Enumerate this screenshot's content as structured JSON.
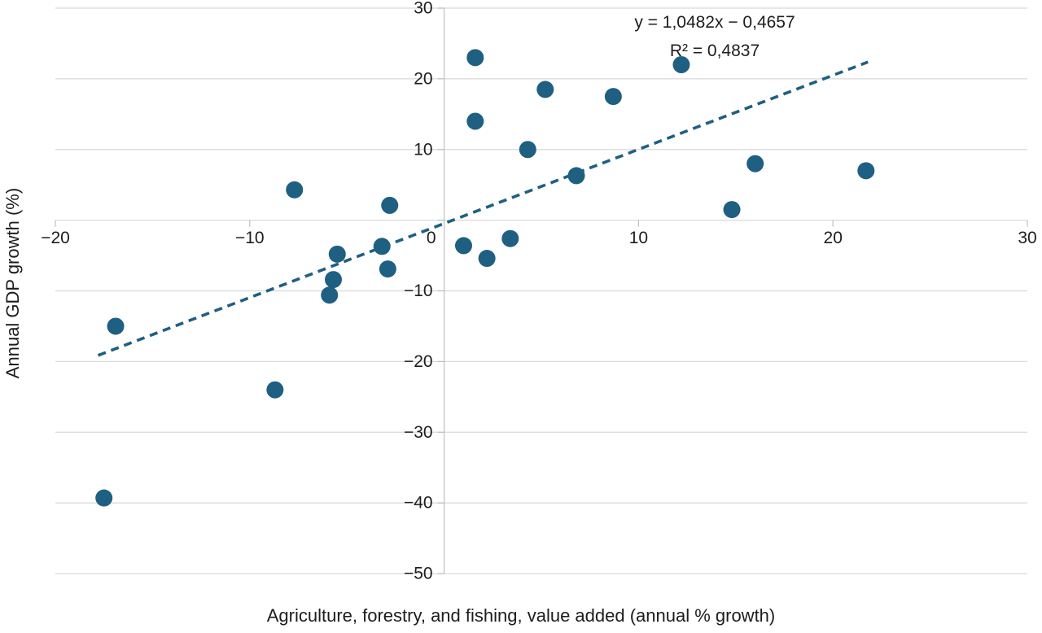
{
  "chart_data": {
    "type": "scatter",
    "title": "",
    "xlabel": "Agriculture, forestry, and fishing, value added (annual % growth)",
    "ylabel": "Annual GDP growth (%)",
    "xlim": [
      -20,
      30
    ],
    "ylim": [
      -50,
      30
    ],
    "x_ticks": [
      -20,
      -10,
      0,
      10,
      20,
      30
    ],
    "x_tick_labels": [
      "−20",
      "−10",
      "0",
      "10",
      "20",
      "30"
    ],
    "y_ticks": [
      30,
      20,
      10,
      0,
      -10,
      -20,
      -30,
      -40,
      -50
    ],
    "y_tick_labels": [
      "30",
      "20",
      "10",
      "0",
      "−10",
      "−20",
      "−30",
      "−40",
      "−50"
    ],
    "grid": "horizontal",
    "legend": "none",
    "points": [
      [
        1.6,
        23.0
      ],
      [
        12.2,
        22.0
      ],
      [
        5.2,
        18.5
      ],
      [
        8.7,
        17.5
      ],
      [
        1.6,
        14.0
      ],
      [
        4.3,
        10.0
      ],
      [
        16.0,
        8.0
      ],
      [
        21.7,
        7.0
      ],
      [
        6.8,
        6.3
      ],
      [
        -7.7,
        4.3
      ],
      [
        -2.8,
        2.1
      ],
      [
        14.8,
        1.5
      ],
      [
        3.4,
        -2.6
      ],
      [
        1.0,
        -3.6
      ],
      [
        -3.2,
        -3.7
      ],
      [
        -5.5,
        -4.8
      ],
      [
        2.2,
        -5.4
      ],
      [
        -2.9,
        -6.9
      ],
      [
        -5.7,
        -8.4
      ],
      [
        -5.9,
        -10.6
      ],
      [
        -16.9,
        -15.0
      ],
      [
        -8.7,
        -24.0
      ],
      [
        -17.5,
        -39.3
      ]
    ],
    "trendline": {
      "slope": 1.0482,
      "intercept": -0.4657,
      "x_start": -17.8,
      "x_end": 21.8,
      "style": "dashed",
      "equation_label": "y = 1,0482x − 0,4657",
      "r_squared_label": "R² = 0,4837"
    },
    "colors": {
      "point": "#1f5f82",
      "trendline": "#1f5f82",
      "gridline": "#d9d9d9",
      "axis": "#bfbfbf",
      "text": "#1d1d1d"
    }
  }
}
